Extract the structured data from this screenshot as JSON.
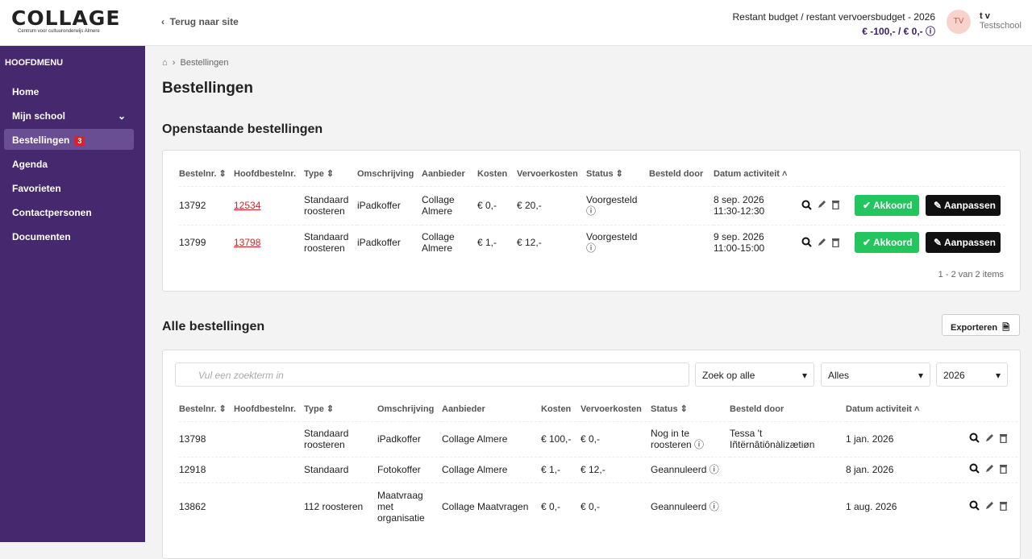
{
  "header": {
    "logo": "COLLAGE",
    "logo_sub": "Centrum voor cultuuronderwijs Almere",
    "back_link": "Terug naar site",
    "budget_label": "Restant budget / restant vervoersbudget - 2026",
    "budget_value": "€ -100,- / € 0,-",
    "avatar": "TV",
    "user_name": "t v",
    "user_school": "Testschool"
  },
  "sidebar": {
    "title": "HOOFDMENU",
    "items": [
      {
        "label": "Home"
      },
      {
        "label": "Mijn school"
      },
      {
        "label": "Bestellingen",
        "badge": 3
      },
      {
        "label": "Agenda"
      },
      {
        "label": "Favorieten"
      },
      {
        "label": "Contactpersonen"
      },
      {
        "label": "Documenten"
      }
    ]
  },
  "breadcrumb": "Bestellingen",
  "page_title": "Bestellingen",
  "open_orders": {
    "title": "Openstaande bestellingen",
    "columns": [
      "Bestelnr.",
      "Hoofdbestelnr.",
      "Type",
      "Omschrijving",
      "Aanbieder",
      "Kosten",
      "Vervoerkosten",
      "Status",
      "Besteld door",
      "Datum activiteit"
    ],
    "rows": [
      [
        "13792",
        "12534",
        "Standaard roosteren",
        "iPadkoffer",
        "Collage Almere",
        "€ 0,-",
        "€ 20,-",
        "Voorgesteld",
        null,
        "8 sep. 2026 11:30-12:30"
      ],
      [
        "13799",
        "13798",
        "Standaard roosteren",
        "iPadkoffer",
        "Collage Almere",
        "€ 1,-",
        "€ 12,-",
        "Voorgesteld",
        null,
        "9 sep. 2026 11:00-15:00"
      ]
    ],
    "actions": [
      "Akkoord",
      "Aanpassen"
    ],
    "pagination": "1 - 2 van 2 items"
  },
  "all_orders": {
    "title": "Alle bestellingen",
    "export": "Exporteren",
    "search_placeholder": "Vul een zoekterm in",
    "filters": [
      "Zoek op alle",
      "Alles",
      "2026"
    ],
    "columns": [
      "Bestelnr.",
      "Hoofdbestelnr.",
      "Type",
      "Omschrijving",
      "Aanbieder",
      "Kosten",
      "Vervoerkosten",
      "Status",
      "Besteld door",
      "Datum activiteit"
    ],
    "rows": [
      [
        "13798",
        null,
        "Standaard roosteren",
        "iPadkoffer",
        "Collage Almere",
        "€ 100,-",
        "€ 0,-",
        "Nog in te roosteren",
        "Tessa 't Iñtërnâtiônàlizætiøn",
        "1 jan. 2026"
      ],
      [
        "12918",
        null,
        "Standaard",
        "Fotokoffer",
        "Collage Almere",
        "€ 1,-",
        "€ 12,-",
        "Geannuleerd",
        null,
        "8 jan. 2026"
      ],
      [
        "13862",
        null,
        "112 roosteren",
        "Maatvraag met organisatie",
        "Collage Maatvragen",
        "€ 0,-",
        "€ 0,-",
        "Geannuleerd",
        null,
        "1 aug. 2026"
      ]
    ]
  }
}
